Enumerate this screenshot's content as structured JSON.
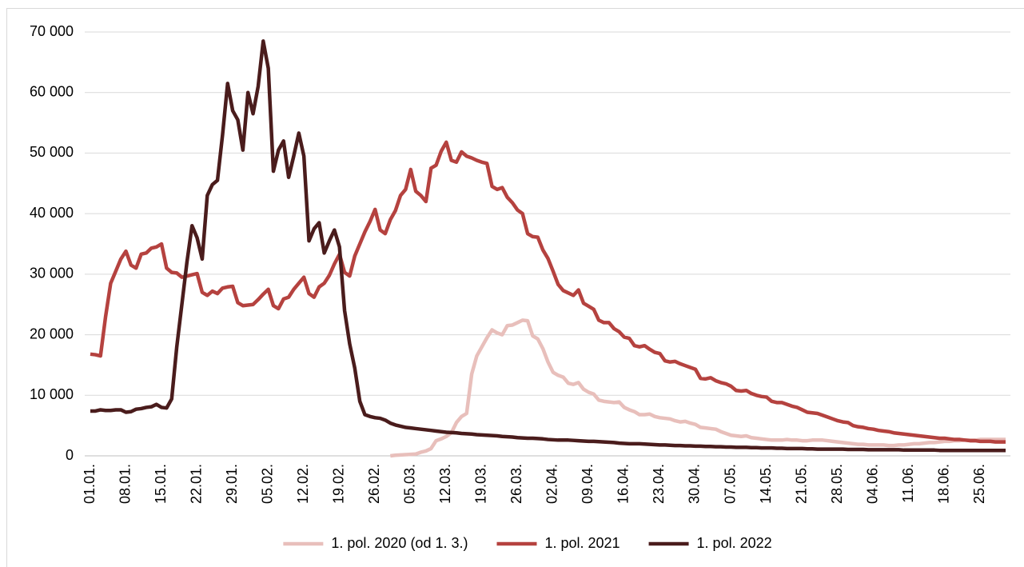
{
  "chart_data": {
    "type": "line",
    "categories": [
      "01.01.",
      null,
      null,
      null,
      null,
      null,
      null,
      "08.01.",
      null,
      null,
      null,
      null,
      null,
      null,
      "15.01.",
      null,
      null,
      null,
      null,
      null,
      null,
      "22.01.",
      null,
      null,
      null,
      null,
      null,
      null,
      "29.01.",
      null,
      null,
      null,
      null,
      null,
      null,
      "05.02.",
      null,
      null,
      null,
      null,
      null,
      null,
      "12.02.",
      null,
      null,
      null,
      null,
      null,
      null,
      "19.02.",
      null,
      null,
      null,
      null,
      null,
      null,
      "26.02.",
      null,
      null,
      null,
      null,
      null,
      null,
      "05.03.",
      null,
      null,
      null,
      null,
      null,
      null,
      "12.03.",
      null,
      null,
      null,
      null,
      null,
      null,
      "19.03.",
      null,
      null,
      null,
      null,
      null,
      null,
      "26.03.",
      null,
      null,
      null,
      null,
      null,
      null,
      "02.04.",
      null,
      null,
      null,
      null,
      null,
      null,
      "09.04.",
      null,
      null,
      null,
      null,
      null,
      null,
      "16.04.",
      null,
      null,
      null,
      null,
      null,
      null,
      "23.04.",
      null,
      null,
      null,
      null,
      null,
      null,
      "30.04.",
      null,
      null,
      null,
      null,
      null,
      null,
      "07.05.",
      null,
      null,
      null,
      null,
      null,
      null,
      "14.05.",
      null,
      null,
      null,
      null,
      null,
      null,
      "21.05.",
      null,
      null,
      null,
      null,
      null,
      null,
      "28.05.",
      null,
      null,
      null,
      null,
      null,
      null,
      "04.06.",
      null,
      null,
      null,
      null,
      null,
      null,
      "11.06.",
      null,
      null,
      null,
      null,
      null,
      null,
      "18.06.",
      null,
      null,
      null,
      null,
      null,
      null,
      "25.06.",
      null,
      null,
      null,
      null,
      null
    ],
    "series": [
      {
        "name": "1. pol. 2020 (od 1. 3.)",
        "color": "#e8bfbb",
        "values": [
          null,
          null,
          null,
          null,
          null,
          null,
          null,
          null,
          null,
          null,
          null,
          null,
          null,
          null,
          null,
          null,
          null,
          null,
          null,
          null,
          null,
          null,
          null,
          null,
          null,
          null,
          null,
          null,
          null,
          null,
          null,
          null,
          null,
          null,
          null,
          null,
          null,
          null,
          null,
          null,
          null,
          null,
          null,
          null,
          null,
          null,
          null,
          null,
          null,
          null,
          null,
          null,
          null,
          null,
          null,
          null,
          null,
          null,
          null,
          0,
          100,
          150,
          200,
          250,
          300,
          600,
          800,
          1200,
          2500,
          2800,
          3200,
          3800,
          5500,
          6500,
          7000,
          13500,
          16500,
          18000,
          19500,
          20800,
          20300,
          20000,
          21500,
          21600,
          22000,
          22400,
          22300,
          19800,
          19300,
          17700,
          15500,
          13800,
          13300,
          13000,
          12000,
          11800,
          12100,
          11000,
          10500,
          10200,
          9200,
          9000,
          8900,
          8800,
          8900,
          8000,
          7600,
          7300,
          6800,
          6800,
          6900,
          6500,
          6300,
          6200,
          6100,
          5800,
          5600,
          5700,
          5400,
          5200,
          4700,
          4600,
          4500,
          4400,
          4000,
          3700,
          3400,
          3300,
          3200,
          3300,
          3000,
          2900,
          2800,
          2700,
          2600,
          2600,
          2600,
          2700,
          2600,
          2600,
          2500,
          2500,
          2600,
          2600,
          2600,
          2500,
          2400,
          2300,
          2200,
          2100,
          2000,
          1900,
          1900,
          1800,
          1800,
          1800,
          1800,
          1700,
          1700,
          1800,
          1800,
          1900,
          2000,
          2000,
          2100,
          2200,
          2200,
          2300,
          2400,
          2400,
          2500,
          2500,
          2600,
          2600,
          2600,
          2700,
          2700,
          2700,
          2700,
          2700,
          2700
        ]
      },
      {
        "name": "1. pol. 2021",
        "color": "#b5423f",
        "values": [
          16800,
          16700,
          16500,
          23000,
          28500,
          30500,
          32500,
          33800,
          31500,
          31000,
          33300,
          33500,
          34300,
          34500,
          35000,
          31000,
          30300,
          30200,
          29500,
          29700,
          29900,
          30100,
          27000,
          26500,
          27200,
          26800,
          27700,
          27900,
          28000,
          25300,
          24800,
          24900,
          25000,
          25800,
          26700,
          27500,
          24800,
          24300,
          25900,
          26200,
          27500,
          28500,
          29500,
          26800,
          26200,
          27900,
          28500,
          29800,
          31700,
          33300,
          30300,
          29700,
          33000,
          35000,
          37000,
          38700,
          40700,
          37300,
          36700,
          39000,
          40500,
          43000,
          44000,
          47300,
          43700,
          43000,
          42000,
          47500,
          48000,
          50300,
          51800,
          48800,
          48500,
          50200,
          49500,
          49200,
          48800,
          48500,
          48300,
          44500,
          44000,
          44300,
          42700,
          41800,
          40600,
          40000,
          36700,
          36200,
          36100,
          34000,
          32600,
          30500,
          28300,
          27300,
          26900,
          26500,
          27400,
          25200,
          24700,
          24200,
          22400,
          22000,
          22000,
          21000,
          20500,
          19600,
          19400,
          18200,
          18000,
          18200,
          17600,
          17100,
          16900,
          15700,
          15500,
          15600,
          15200,
          14900,
          14600,
          14300,
          12800,
          12700,
          12900,
          12400,
          12100,
          11900,
          11500,
          10800,
          10700,
          10800,
          10300,
          10000,
          9800,
          9700,
          9000,
          8800,
          8800,
          8500,
          8200,
          8000,
          7600,
          7200,
          7100,
          7000,
          6700,
          6400,
          6100,
          5800,
          5600,
          5500,
          5000,
          4800,
          4700,
          4500,
          4400,
          4200,
          4100,
          4000,
          3800,
          3700,
          3600,
          3500,
          3400,
          3300,
          3200,
          3100,
          3000,
          2900,
          2900,
          2800,
          2700,
          2700,
          2600,
          2500,
          2500,
          2400,
          2400,
          2400,
          2300,
          2300,
          2300
        ]
      },
      {
        "name": "1. pol. 2022",
        "color": "#4a1c1c",
        "values": [
          7400,
          7400,
          7600,
          7500,
          7500,
          7600,
          7600,
          7200,
          7300,
          7700,
          7800,
          8000,
          8100,
          8500,
          8000,
          7900,
          9400,
          18000,
          25000,
          32000,
          38000,
          36000,
          32500,
          43000,
          44800,
          45500,
          53000,
          61500,
          57000,
          55500,
          50500,
          60000,
          56500,
          61000,
          68500,
          64000,
          47000,
          50500,
          52000,
          46000,
          49500,
          53300,
          49500,
          35500,
          37500,
          38500,
          33500,
          35500,
          37300,
          34500,
          24000,
          18500,
          14500,
          9000,
          6800,
          6500,
          6300,
          6200,
          5900,
          5400,
          5100,
          4900,
          4700,
          4600,
          4500,
          4400,
          4300,
          4200,
          4100,
          4000,
          3900,
          3850,
          3800,
          3700,
          3650,
          3600,
          3500,
          3450,
          3400,
          3350,
          3300,
          3200,
          3150,
          3100,
          3000,
          2950,
          2900,
          2900,
          2850,
          2800,
          2700,
          2650,
          2600,
          2600,
          2600,
          2550,
          2500,
          2450,
          2400,
          2400,
          2350,
          2300,
          2250,
          2200,
          2100,
          2050,
          2000,
          2000,
          2000,
          1950,
          1900,
          1850,
          1800,
          1800,
          1750,
          1700,
          1700,
          1650,
          1650,
          1600,
          1600,
          1550,
          1550,
          1500,
          1500,
          1450,
          1450,
          1400,
          1400,
          1400,
          1350,
          1350,
          1300,
          1300,
          1300,
          1250,
          1250,
          1200,
          1200,
          1200,
          1200,
          1150,
          1150,
          1100,
          1100,
          1100,
          1100,
          1100,
          1100,
          1050,
          1050,
          1050,
          1050,
          1000,
          1000,
          1000,
          1000,
          1000,
          1000,
          1000,
          950,
          950,
          950,
          950,
          950,
          950,
          950,
          900,
          900,
          900,
          900,
          900,
          900,
          900,
          900,
          900,
          900,
          900,
          900,
          900,
          900
        ]
      }
    ],
    "ylim": [
      0,
      70000
    ],
    "yticks": [
      0,
      {
        "value": 10000,
        "label": "10 000"
      },
      {
        "value": 20000,
        "label": "20 000"
      },
      {
        "value": 30000,
        "label": "30 000"
      },
      {
        "value": 40000,
        "label": "40 000"
      },
      {
        "value": 50000,
        "label": "50 000"
      },
      {
        "value": 60000,
        "label": "60 000"
      },
      {
        "value": 70000,
        "label": "70 000"
      }
    ],
    "grid": true,
    "legend": "bottom"
  }
}
